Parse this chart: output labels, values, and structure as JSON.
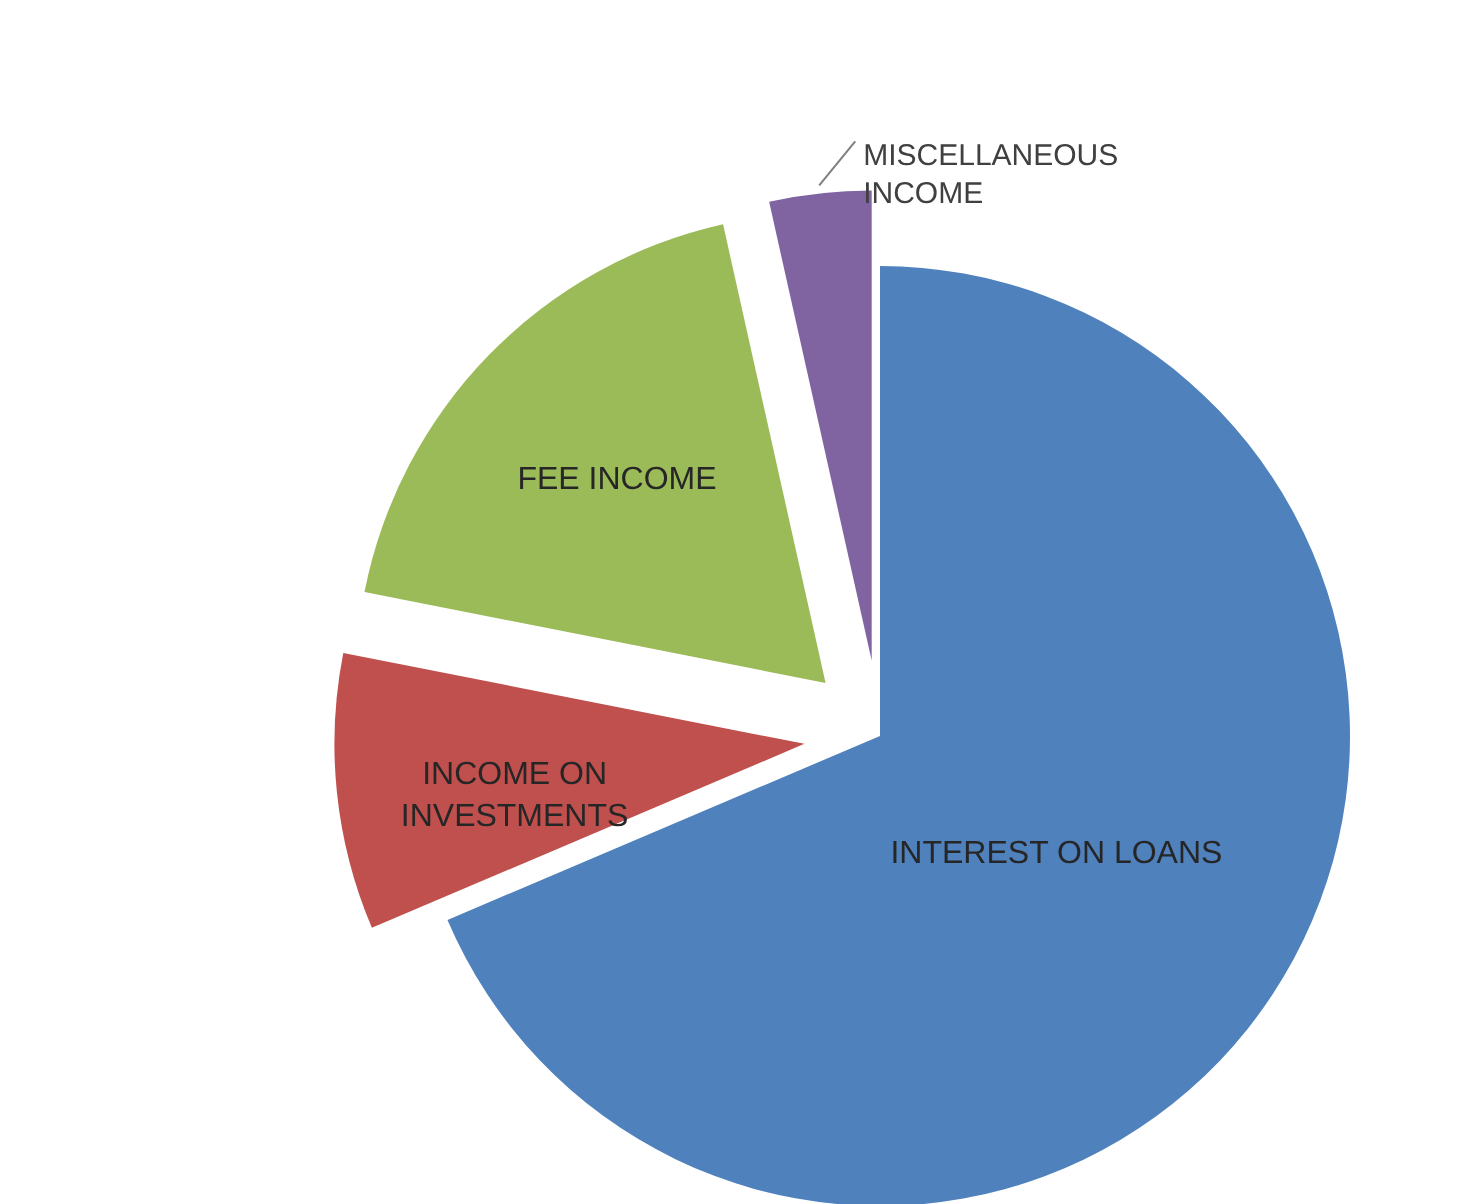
{
  "chart_data": {
    "type": "pie",
    "categories": [
      "INTEREST ON LOANS",
      "INCOME ON INVESTMENTS",
      "FEE INCOME",
      "MISCELLANEOUS INCOME"
    ],
    "values": [
      68.6,
      9.5,
      18.4,
      3.5
    ],
    "colors": [
      "#4f81bd",
      "#c0504d",
      "#9bbb59",
      "#8064a2"
    ]
  }
}
